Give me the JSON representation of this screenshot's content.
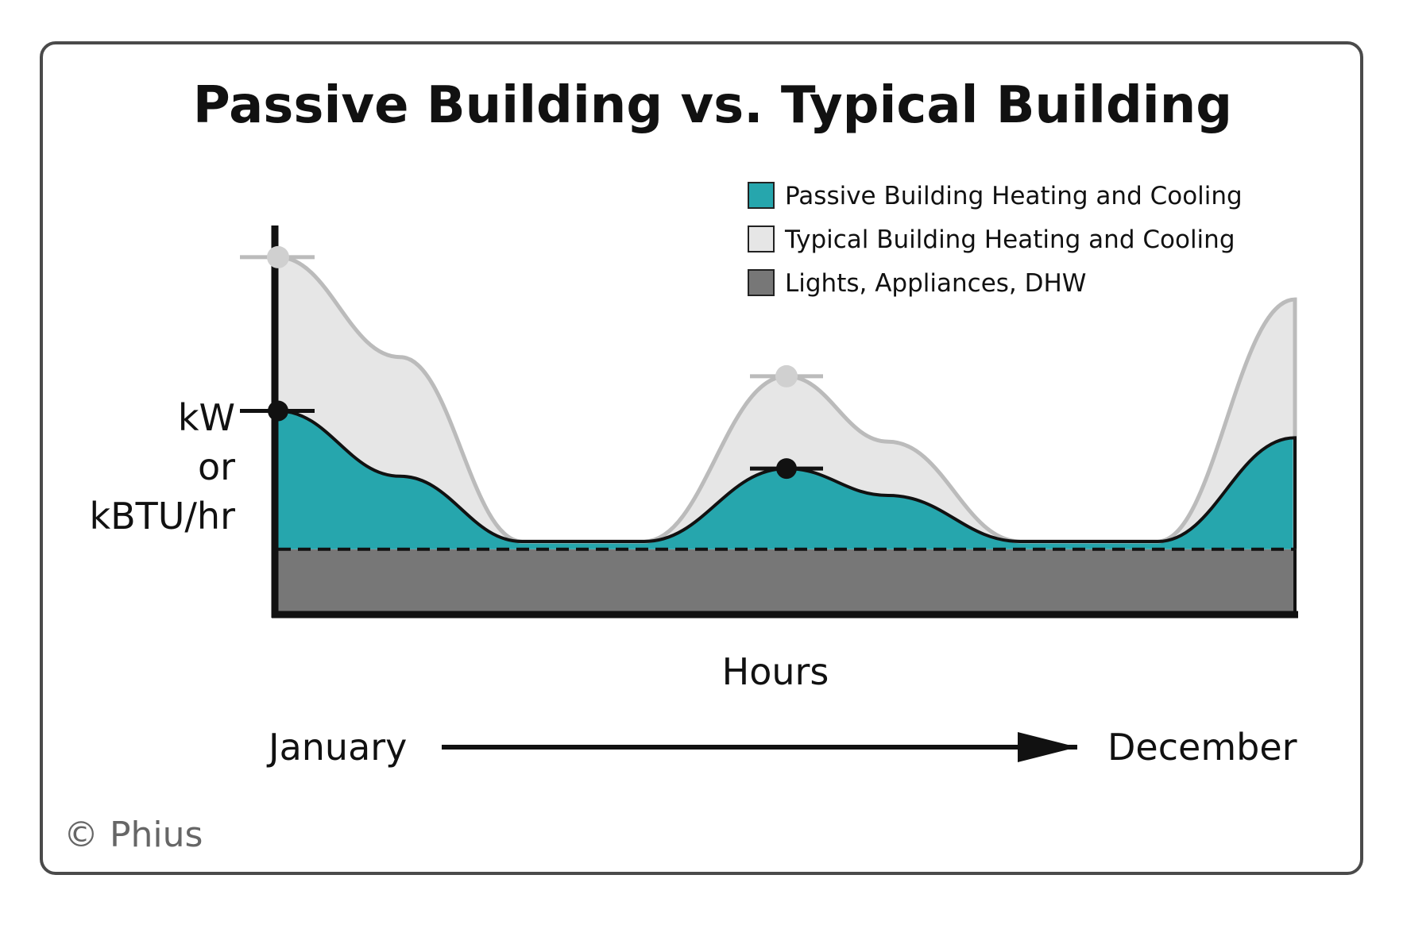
{
  "chart_data": {
    "type": "area",
    "title": "Passive Building vs. Typical Building",
    "xlabel": "Hours",
    "ylabel_lines": [
      "kW",
      "or",
      "kBTU/hr"
    ],
    "timeline": {
      "start": "January",
      "end": "December"
    },
    "legend": {
      "position": "top-right",
      "entries": [
        {
          "label": "Passive Building Heating and Cooling",
          "color": "#26a6ad"
        },
        {
          "label": "Typical Building Heating and Cooling",
          "color": "#e6e6e6"
        },
        {
          "label": "Lights, Appliances, DHW",
          "color": "#777777"
        }
      ]
    },
    "x": [
      0,
      0.12,
      0.24,
      0.36,
      0.5,
      0.6,
      0.73,
      0.865,
      1.0
    ],
    "xlim": [
      0,
      1
    ],
    "ylim": [
      0,
      1
    ],
    "baseline_level": 0.17,
    "series": [
      {
        "name": "Typical Building Heating and Cooling",
        "values": [
          0.93,
          0.67,
          0.19,
          0.19,
          0.62,
          0.45,
          0.19,
          0.19,
          0.82
        ],
        "color": "#bbbbbb",
        "fill": "#e6e6e6"
      },
      {
        "name": "Passive Building Heating and Cooling",
        "values": [
          0.53,
          0.36,
          0.19,
          0.19,
          0.38,
          0.31,
          0.19,
          0.19,
          0.46
        ],
        "color": "#111111",
        "fill": "#26a6ad"
      }
    ],
    "peaks": [
      {
        "series": "Typical Building Heating and Cooling",
        "x": 0.0,
        "y": 0.93
      },
      {
        "series": "Typical Building Heating and Cooling",
        "x": 0.5,
        "y": 0.62
      },
      {
        "series": "Passive Building Heating and Cooling",
        "x": 0.0,
        "y": 0.53
      },
      {
        "series": "Passive Building Heating and Cooling",
        "x": 0.5,
        "y": 0.38
      }
    ]
  },
  "copyright": "© Phius"
}
